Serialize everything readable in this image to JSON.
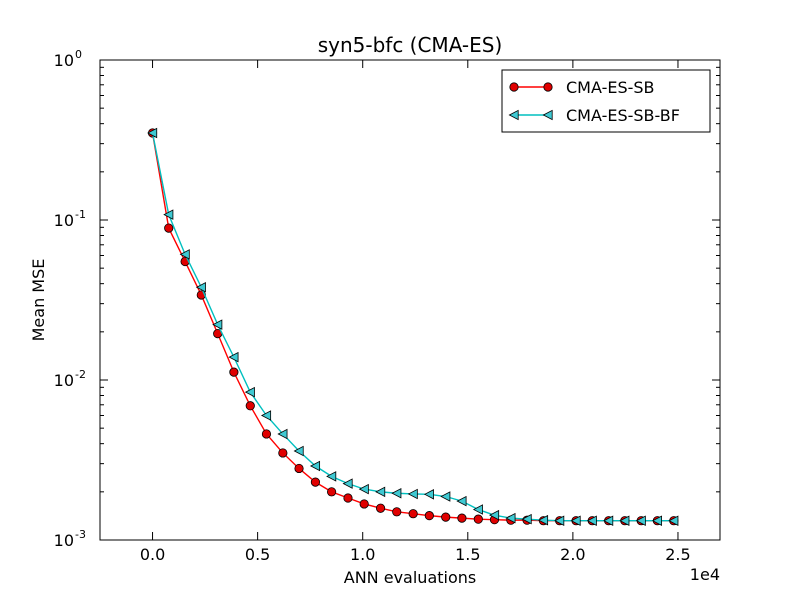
{
  "chart_data": {
    "type": "line",
    "title": "syn5-bfc (CMA-ES)",
    "xlabel": "ANN evaluations",
    "ylabel": "Mean MSE",
    "x_offset_label": "1e4",
    "yscale": "log",
    "xlim": [
      -0.25,
      2.7
    ],
    "ylim": [
      0.001,
      1
    ],
    "x_ticks": [
      {
        "value": 0.0,
        "label": "0.0"
      },
      {
        "value": 0.5,
        "label": "0.5"
      },
      {
        "value": 1.0,
        "label": "1.0"
      },
      {
        "value": 1.5,
        "label": "1.5"
      },
      {
        "value": 2.0,
        "label": "2.0"
      },
      {
        "value": 2.5,
        "label": "2.5"
      }
    ],
    "y_ticks": [
      {
        "value": 1,
        "base": "10",
        "exp": "0"
      },
      {
        "value": 0.1,
        "base": "10",
        "exp": "-1"
      },
      {
        "value": 0.01,
        "base": "10",
        "exp": "-2"
      },
      {
        "value": 0.001,
        "base": "10",
        "exp": "-3"
      }
    ],
    "legend_position": "top-right",
    "series": [
      {
        "name": "CMA-ES-SB",
        "color": "#ff0000",
        "marker_fill": "#e00000",
        "marker": "circle",
        "x": [
          0.0,
          0.077,
          0.155,
          0.232,
          0.31,
          0.387,
          0.465,
          0.542,
          0.62,
          0.697,
          0.775,
          0.852,
          0.93,
          1.007,
          1.085,
          1.162,
          1.24,
          1.317,
          1.395,
          1.472,
          1.55,
          1.627,
          1.705,
          1.782,
          1.86,
          1.937,
          2.015,
          2.092,
          2.17,
          2.247,
          2.325,
          2.402,
          2.48
        ],
        "y": [
          0.35,
          0.089,
          0.055,
          0.034,
          0.0195,
          0.0112,
          0.0069,
          0.0046,
          0.0035,
          0.0028,
          0.0023,
          0.002,
          0.00183,
          0.00168,
          0.00158,
          0.0015,
          0.00146,
          0.00142,
          0.00139,
          0.00137,
          0.00135,
          0.00134,
          0.00133,
          0.00133,
          0.00132,
          0.00132,
          0.00132,
          0.00132,
          0.00132,
          0.00132,
          0.00132,
          0.00132,
          0.00132
        ]
      },
      {
        "name": "CMA-ES-SB-BF",
        "color": "#00bfbf",
        "marker_fill": "#3fc9d2",
        "marker": "triangle-left",
        "x": [
          0.0,
          0.077,
          0.155,
          0.232,
          0.31,
          0.387,
          0.465,
          0.542,
          0.62,
          0.697,
          0.775,
          0.852,
          0.93,
          1.007,
          1.085,
          1.162,
          1.24,
          1.317,
          1.395,
          1.472,
          1.55,
          1.627,
          1.705,
          1.782,
          1.86,
          1.937,
          2.015,
          2.092,
          2.17,
          2.247,
          2.325,
          2.402,
          2.48
        ],
        "y": [
          0.35,
          0.108,
          0.061,
          0.038,
          0.0222,
          0.0139,
          0.0084,
          0.006,
          0.0046,
          0.0036,
          0.0029,
          0.0025,
          0.00225,
          0.00208,
          0.002,
          0.00196,
          0.00194,
          0.00193,
          0.00187,
          0.00175,
          0.00155,
          0.00143,
          0.00137,
          0.00135,
          0.00133,
          0.00132,
          0.00132,
          0.00132,
          0.00132,
          0.00132,
          0.00132,
          0.00132,
          0.00132
        ]
      }
    ]
  }
}
